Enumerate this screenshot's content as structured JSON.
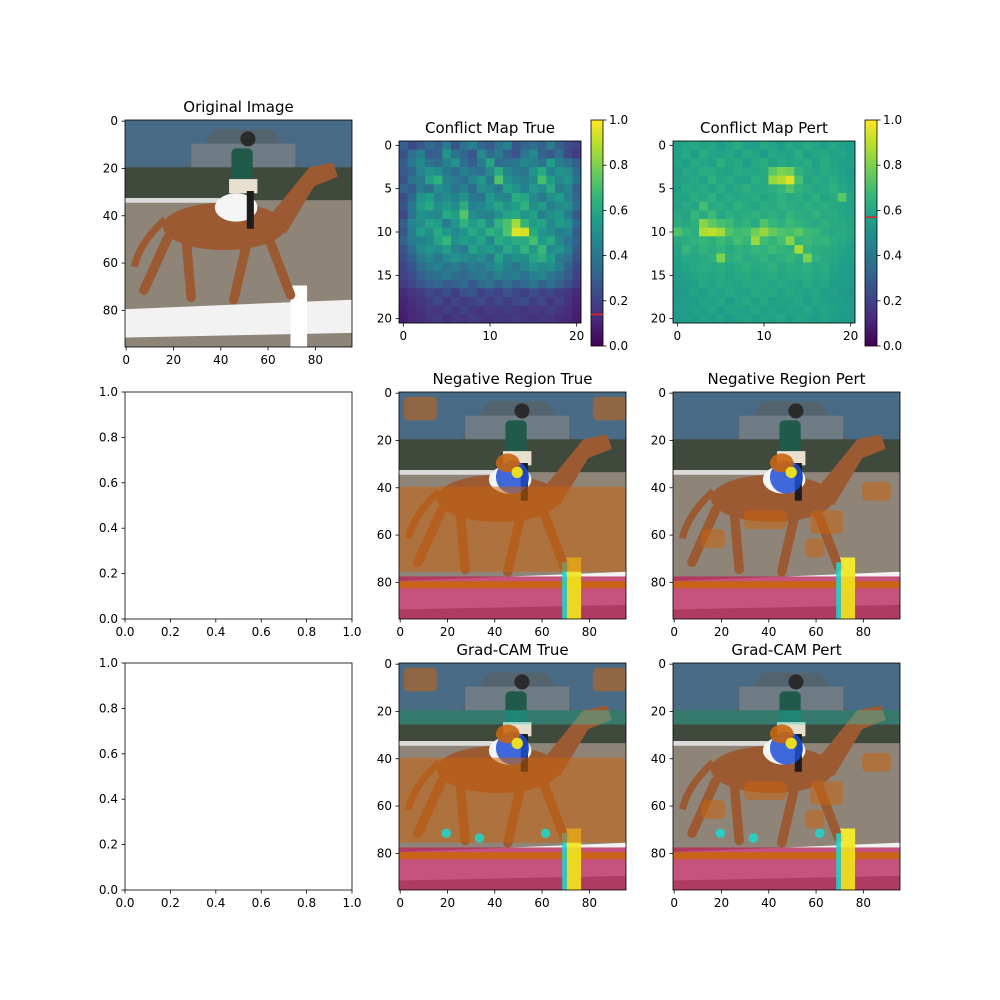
{
  "colors": {
    "viridis": [
      "#440154",
      "#482878",
      "#3e4989",
      "#31688e",
      "#26828e",
      "#1f9e89",
      "#35b779",
      "#6ece58",
      "#b5de2b",
      "#fde725"
    ],
    "marker": "#d62728",
    "sky": "#4a6b86",
    "barn": "#54646f",
    "horse": "#9c5a32",
    "ground": "#8e8478",
    "fence": "#f2f2f2",
    "rider_shirt": "#1f5a4a",
    "saddle_pad": "#f5f5f5",
    "gray_horse": "#8f8f8f",
    "gray_bg": "#6a6a6a",
    "gray_ground": "#a8a8a8",
    "orange_overlay": "#c8650e",
    "magenta_overlay": "#b8265c",
    "yellow_overlay": "#f2e51a",
    "blue_overlay": "#1e4fd6",
    "cyan_overlay": "#22d3c8",
    "red_overlay": "#e03020"
  },
  "chart_data": [
    {
      "type": "image",
      "title": "Original Image",
      "xticks": [
        "0",
        "20",
        "40",
        "60",
        "80"
      ],
      "yticks": [
        "0",
        "20",
        "40",
        "60",
        "80"
      ],
      "xlim": [
        -0.5,
        95.5
      ],
      "ylim": [
        95.5,
        -0.5
      ]
    },
    {
      "type": "heatmap",
      "title": "Conflict Map True",
      "xticks": [
        "0",
        "10",
        "20"
      ],
      "yticks": [
        "0",
        "5",
        "10",
        "15",
        "20"
      ],
      "xlim": [
        -0.5,
        20.5
      ],
      "ylim": [
        20.5,
        -0.5
      ],
      "colorbar": {
        "range": [
          0,
          1
        ],
        "ticks": [
          "0.0",
          "0.2",
          "0.4",
          "0.6",
          "0.8",
          "1.0"
        ],
        "marker_value": 0.14
      },
      "values": [
        [
          0.31,
          0.22,
          0.28,
          0.35,
          0.3,
          0.41,
          0.26,
          0.37,
          0.44,
          0.33,
          0.29,
          0.38,
          0.45,
          0.27,
          0.33,
          0.36,
          0.31,
          0.42,
          0.3,
          0.24,
          0.21
        ],
        [
          0.25,
          0.36,
          0.44,
          0.29,
          0.31,
          0.52,
          0.38,
          0.33,
          0.27,
          0.48,
          0.35,
          0.41,
          0.3,
          0.26,
          0.39,
          0.47,
          0.32,
          0.28,
          0.36,
          0.23,
          0.18
        ],
        [
          0.3,
          0.41,
          0.48,
          0.38,
          0.35,
          0.44,
          0.52,
          0.36,
          0.3,
          0.42,
          0.58,
          0.35,
          0.38,
          0.4,
          0.47,
          0.43,
          0.38,
          0.55,
          0.42,
          0.37,
          0.3
        ],
        [
          0.28,
          0.33,
          0.46,
          0.52,
          0.49,
          0.4,
          0.35,
          0.44,
          0.39,
          0.36,
          0.47,
          0.62,
          0.46,
          0.41,
          0.38,
          0.52,
          0.6,
          0.44,
          0.51,
          0.49,
          0.34
        ],
        [
          0.26,
          0.38,
          0.42,
          0.57,
          0.64,
          0.44,
          0.41,
          0.37,
          0.46,
          0.53,
          0.4,
          0.72,
          0.5,
          0.46,
          0.43,
          0.48,
          0.7,
          0.55,
          0.46,
          0.52,
          0.38
        ],
        [
          0.33,
          0.29,
          0.41,
          0.37,
          0.5,
          0.46,
          0.38,
          0.43,
          0.35,
          0.49,
          0.46,
          0.41,
          0.57,
          0.52,
          0.44,
          0.53,
          0.49,
          0.6,
          0.41,
          0.47,
          0.3
        ],
        [
          0.24,
          0.34,
          0.52,
          0.56,
          0.45,
          0.49,
          0.44,
          0.51,
          0.4,
          0.38,
          0.54,
          0.47,
          0.45,
          0.62,
          0.59,
          0.47,
          0.41,
          0.5,
          0.55,
          0.44,
          0.33
        ],
        [
          0.27,
          0.4,
          0.56,
          0.6,
          0.5,
          0.54,
          0.48,
          0.62,
          0.44,
          0.47,
          0.52,
          0.59,
          0.51,
          0.56,
          0.64,
          0.49,
          0.55,
          0.43,
          0.48,
          0.5,
          0.36
        ],
        [
          0.22,
          0.39,
          0.51,
          0.48,
          0.46,
          0.6,
          0.56,
          0.73,
          0.49,
          0.45,
          0.44,
          0.51,
          0.58,
          0.6,
          0.52,
          0.57,
          0.44,
          0.5,
          0.53,
          0.42,
          0.28
        ],
        [
          0.3,
          0.46,
          0.49,
          0.58,
          0.55,
          0.42,
          0.52,
          0.64,
          0.55,
          0.6,
          0.48,
          0.65,
          0.71,
          0.86,
          0.66,
          0.55,
          0.58,
          0.46,
          0.55,
          0.51,
          0.34
        ],
        [
          0.27,
          0.43,
          0.56,
          0.5,
          0.61,
          0.54,
          0.48,
          0.52,
          0.6,
          0.55,
          0.63,
          0.59,
          0.72,
          0.95,
          0.94,
          0.61,
          0.52,
          0.49,
          0.43,
          0.46,
          0.29
        ],
        [
          0.32,
          0.42,
          0.44,
          0.47,
          0.58,
          0.66,
          0.5,
          0.56,
          0.52,
          0.58,
          0.47,
          0.61,
          0.57,
          0.62,
          0.61,
          0.7,
          0.55,
          0.6,
          0.47,
          0.39,
          0.31
        ],
        [
          0.26,
          0.35,
          0.48,
          0.52,
          0.49,
          0.56,
          0.45,
          0.42,
          0.58,
          0.51,
          0.55,
          0.49,
          0.6,
          0.54,
          0.65,
          0.53,
          0.67,
          0.48,
          0.52,
          0.44,
          0.28
        ],
        [
          0.24,
          0.3,
          0.42,
          0.46,
          0.4,
          0.47,
          0.52,
          0.48,
          0.45,
          0.49,
          0.41,
          0.58,
          0.46,
          0.51,
          0.49,
          0.59,
          0.62,
          0.55,
          0.41,
          0.37,
          0.25
        ],
        [
          0.21,
          0.27,
          0.36,
          0.4,
          0.44,
          0.38,
          0.42,
          0.37,
          0.43,
          0.4,
          0.46,
          0.5,
          0.44,
          0.39,
          0.46,
          0.52,
          0.48,
          0.5,
          0.43,
          0.32,
          0.22
        ],
        [
          0.2,
          0.24,
          0.31,
          0.35,
          0.37,
          0.41,
          0.36,
          0.33,
          0.39,
          0.42,
          0.38,
          0.45,
          0.4,
          0.43,
          0.38,
          0.44,
          0.46,
          0.4,
          0.35,
          0.29,
          0.2
        ],
        [
          0.18,
          0.22,
          0.27,
          0.3,
          0.33,
          0.29,
          0.31,
          0.35,
          0.28,
          0.34,
          0.37,
          0.31,
          0.36,
          0.3,
          0.34,
          0.38,
          0.32,
          0.36,
          0.3,
          0.25,
          0.18
        ],
        [
          0.12,
          0.15,
          0.18,
          0.22,
          0.2,
          0.24,
          0.19,
          0.25,
          0.27,
          0.2,
          0.23,
          0.21,
          0.26,
          0.22,
          0.19,
          0.24,
          0.2,
          0.22,
          0.18,
          0.16,
          0.12
        ],
        [
          0.1,
          0.13,
          0.16,
          0.19,
          0.22,
          0.17,
          0.21,
          0.18,
          0.2,
          0.23,
          0.19,
          0.22,
          0.18,
          0.21,
          0.24,
          0.19,
          0.22,
          0.17,
          0.2,
          0.14,
          0.1
        ],
        [
          0.09,
          0.12,
          0.14,
          0.17,
          0.15,
          0.19,
          0.16,
          0.2,
          0.17,
          0.15,
          0.18,
          0.16,
          0.19,
          0.17,
          0.15,
          0.18,
          0.16,
          0.19,
          0.15,
          0.13,
          0.09
        ],
        [
          0.08,
          0.11,
          0.13,
          0.15,
          0.18,
          0.14,
          0.17,
          0.15,
          0.18,
          0.16,
          0.14,
          0.17,
          0.15,
          0.18,
          0.16,
          0.14,
          0.17,
          0.15,
          0.13,
          0.12,
          0.08
        ]
      ]
    },
    {
      "type": "heatmap",
      "title": "Conflict Map Pert",
      "xticks": [
        "0",
        "10",
        "20"
      ],
      "yticks": [
        "0",
        "5",
        "10",
        "15",
        "20"
      ],
      "xlim": [
        -0.5,
        20.5
      ],
      "ylim": [
        20.5,
        -0.5
      ],
      "colorbar": {
        "range": [
          0,
          1
        ],
        "ticks": [
          "0.0",
          "0.2",
          "0.4",
          "0.6",
          "0.8",
          "1.0"
        ],
        "marker_value": 0.57
      },
      "values": [
        [
          0.56,
          0.58,
          0.6,
          0.57,
          0.59,
          0.55,
          0.58,
          0.61,
          0.57,
          0.56,
          0.6,
          0.58,
          0.55,
          0.59,
          0.57,
          0.61,
          0.58,
          0.56,
          0.59,
          0.57,
          0.55
        ],
        [
          0.57,
          0.6,
          0.55,
          0.62,
          0.58,
          0.57,
          0.59,
          0.56,
          0.61,
          0.58,
          0.55,
          0.6,
          0.58,
          0.57,
          0.62,
          0.56,
          0.59,
          0.6,
          0.57,
          0.58,
          0.56
        ],
        [
          0.58,
          0.56,
          0.61,
          0.59,
          0.57,
          0.63,
          0.58,
          0.6,
          0.56,
          0.59,
          0.62,
          0.57,
          0.6,
          0.58,
          0.59,
          0.61,
          0.57,
          0.62,
          0.58,
          0.56,
          0.57
        ],
        [
          0.55,
          0.59,
          0.58,
          0.62,
          0.6,
          0.58,
          0.57,
          0.61,
          0.59,
          0.58,
          0.6,
          0.75,
          0.8,
          0.78,
          0.64,
          0.6,
          0.58,
          0.61,
          0.59,
          0.57,
          0.55
        ],
        [
          0.57,
          0.58,
          0.6,
          0.57,
          0.63,
          0.59,
          0.61,
          0.58,
          0.57,
          0.62,
          0.59,
          0.84,
          0.88,
          0.95,
          0.7,
          0.58,
          0.61,
          0.59,
          0.62,
          0.58,
          0.56
        ],
        [
          0.56,
          0.6,
          0.59,
          0.61,
          0.58,
          0.62,
          0.57,
          0.6,
          0.63,
          0.59,
          0.61,
          0.62,
          0.66,
          0.72,
          0.64,
          0.62,
          0.59,
          0.6,
          0.63,
          0.6,
          0.57
        ],
        [
          0.58,
          0.57,
          0.62,
          0.59,
          0.63,
          0.58,
          0.61,
          0.59,
          0.6,
          0.62,
          0.58,
          0.61,
          0.63,
          0.6,
          0.62,
          0.59,
          0.63,
          0.58,
          0.61,
          0.74,
          0.58
        ],
        [
          0.57,
          0.61,
          0.58,
          0.7,
          0.6,
          0.62,
          0.59,
          0.63,
          0.61,
          0.58,
          0.62,
          0.6,
          0.64,
          0.62,
          0.6,
          0.63,
          0.61,
          0.62,
          0.6,
          0.58,
          0.57
        ],
        [
          0.59,
          0.58,
          0.66,
          0.61,
          0.68,
          0.59,
          0.63,
          0.6,
          0.62,
          0.64,
          0.61,
          0.63,
          0.6,
          0.65,
          0.62,
          0.61,
          0.64,
          0.6,
          0.62,
          0.59,
          0.58
        ],
        [
          0.62,
          0.6,
          0.63,
          0.82,
          0.75,
          0.7,
          0.68,
          0.62,
          0.65,
          0.6,
          0.72,
          0.66,
          0.63,
          0.68,
          0.64,
          0.62,
          0.6,
          0.63,
          0.61,
          0.6,
          0.58
        ],
        [
          0.72,
          0.66,
          0.62,
          0.88,
          0.9,
          0.86,
          0.72,
          0.68,
          0.7,
          0.78,
          0.84,
          0.76,
          0.72,
          0.7,
          0.74,
          0.68,
          0.66,
          0.62,
          0.6,
          0.61,
          0.59
        ],
        [
          0.6,
          0.62,
          0.64,
          0.66,
          0.63,
          0.68,
          0.65,
          0.7,
          0.66,
          0.85,
          0.69,
          0.65,
          0.7,
          0.82,
          0.66,
          0.68,
          0.64,
          0.66,
          0.62,
          0.6,
          0.58
        ],
        [
          0.58,
          0.66,
          0.6,
          0.64,
          0.62,
          0.65,
          0.6,
          0.63,
          0.62,
          0.66,
          0.64,
          0.68,
          0.65,
          0.63,
          0.86,
          0.65,
          0.62,
          0.61,
          0.6,
          0.58,
          0.57
        ],
        [
          0.57,
          0.6,
          0.59,
          0.61,
          0.63,
          0.8,
          0.62,
          0.64,
          0.6,
          0.62,
          0.65,
          0.61,
          0.63,
          0.66,
          0.62,
          0.8,
          0.64,
          0.6,
          0.59,
          0.57,
          0.56
        ],
        [
          0.56,
          0.58,
          0.6,
          0.62,
          0.6,
          0.62,
          0.59,
          0.61,
          0.63,
          0.6,
          0.62,
          0.64,
          0.6,
          0.62,
          0.61,
          0.63,
          0.6,
          0.62,
          0.58,
          0.56,
          0.55
        ],
        [
          0.55,
          0.57,
          0.58,
          0.6,
          0.59,
          0.61,
          0.58,
          0.6,
          0.61,
          0.58,
          0.6,
          0.62,
          0.59,
          0.61,
          0.6,
          0.62,
          0.59,
          0.6,
          0.57,
          0.56,
          0.55
        ],
        [
          0.54,
          0.56,
          0.57,
          0.59,
          0.58,
          0.6,
          0.59,
          0.58,
          0.6,
          0.59,
          0.61,
          0.58,
          0.6,
          0.59,
          0.58,
          0.6,
          0.58,
          0.59,
          0.56,
          0.55,
          0.54
        ],
        [
          0.53,
          0.55,
          0.58,
          0.56,
          0.59,
          0.57,
          0.6,
          0.58,
          0.57,
          0.6,
          0.58,
          0.59,
          0.57,
          0.6,
          0.58,
          0.57,
          0.59,
          0.56,
          0.57,
          0.54,
          0.53
        ],
        [
          0.54,
          0.56,
          0.55,
          0.58,
          0.57,
          0.59,
          0.56,
          0.58,
          0.6,
          0.57,
          0.59,
          0.56,
          0.58,
          0.57,
          0.59,
          0.56,
          0.58,
          0.57,
          0.55,
          0.56,
          0.54
        ],
        [
          0.55,
          0.54,
          0.57,
          0.56,
          0.58,
          0.55,
          0.58,
          0.57,
          0.56,
          0.59,
          0.57,
          0.58,
          0.56,
          0.58,
          0.57,
          0.59,
          0.56,
          0.58,
          0.57,
          0.55,
          0.54
        ],
        [
          0.54,
          0.56,
          0.55,
          0.57,
          0.56,
          0.58,
          0.55,
          0.57,
          0.58,
          0.56,
          0.58,
          0.57,
          0.59,
          0.56,
          0.58,
          0.57,
          0.56,
          0.58,
          0.56,
          0.55,
          0.53
        ]
      ]
    },
    {
      "type": "empty",
      "title": "",
      "xticks": [
        "0.0",
        "0.2",
        "0.4",
        "0.6",
        "0.8",
        "1.0"
      ],
      "yticks": [
        "0.0",
        "0.2",
        "0.4",
        "0.6",
        "0.8",
        "1.0"
      ],
      "xlim": [
        0,
        1
      ],
      "ylim": [
        0,
        1
      ]
    },
    {
      "type": "image",
      "title": "Negative Region True",
      "xticks": [
        "0",
        "20",
        "40",
        "60",
        "80"
      ],
      "yticks": [
        "0",
        "20",
        "40",
        "60",
        "80"
      ],
      "xlim": [
        -0.5,
        95.5
      ],
      "ylim": [
        95.5,
        -0.5
      ]
    },
    {
      "type": "image",
      "title": "Negative Region Pert",
      "xticks": [
        "0",
        "20",
        "40",
        "60",
        "80"
      ],
      "yticks": [
        "0",
        "20",
        "40",
        "60",
        "80"
      ],
      "xlim": [
        -0.5,
        95.5
      ],
      "ylim": [
        95.5,
        -0.5
      ]
    },
    {
      "type": "empty",
      "title": "",
      "xticks": [
        "0.0",
        "0.2",
        "0.4",
        "0.6",
        "0.8",
        "1.0"
      ],
      "yticks": [
        "0.0",
        "0.2",
        "0.4",
        "0.6",
        "0.8",
        "1.0"
      ],
      "xlim": [
        0,
        1
      ],
      "ylim": [
        0,
        1
      ]
    },
    {
      "type": "image",
      "title": "Grad-CAM True",
      "xticks": [
        "0",
        "20",
        "40",
        "60",
        "80"
      ],
      "yticks": [
        "0",
        "20",
        "40",
        "60",
        "80"
      ],
      "xlim": [
        -0.5,
        95.5
      ],
      "ylim": [
        95.5,
        -0.5
      ]
    },
    {
      "type": "image",
      "title": "Grad-CAM Pert",
      "xticks": [
        "0",
        "20",
        "40",
        "60",
        "80"
      ],
      "yticks": [
        "0",
        "20",
        "40",
        "60",
        "80"
      ],
      "xlim": [
        -0.5,
        95.5
      ],
      "ylim": [
        95.5,
        -0.5
      ]
    }
  ]
}
